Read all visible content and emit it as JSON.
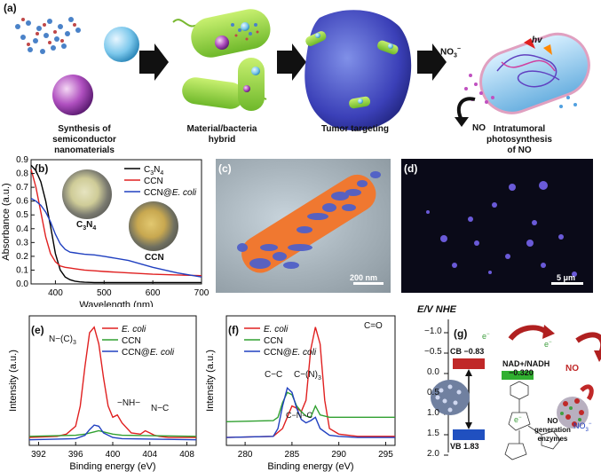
{
  "panel_a": {
    "label": "(a)",
    "captions": [
      {
        "lines": [
          "Synthesis of",
          "semiconductor",
          "nanomaterials"
        ]
      },
      {
        "lines": [
          "Material/bacteria",
          "hybrid"
        ]
      },
      {
        "lines": [
          "Tumor targeting"
        ]
      },
      {
        "lines": [
          "Intratumoral",
          "photosynthesis",
          "of NO"
        ]
      }
    ],
    "labels": {
      "no3": "NO",
      "no3_sup": "3",
      "no3_charge": "−",
      "no": "NO",
      "hv": "hv"
    }
  },
  "panel_b": {
    "label": "(b)",
    "photo_labels": {
      "c3n4": "C",
      "c3n4_sub1": "3",
      "c3n4_n": "N",
      "c3n4_sub2": "4",
      "ccn": "CCN"
    }
  },
  "panel_c": {
    "label": "(c)",
    "scalebar": "200 nm"
  },
  "panel_d": {
    "label": "(d)",
    "scalebar": "5 μm"
  },
  "panel_e": {
    "label": "(e)",
    "annotations": {
      "nc3": "N−(C)",
      "nc3_sub": "3",
      "nh": "−NH−",
      "nc": "N−C"
    }
  },
  "panel_f": {
    "label": "(f)",
    "annotations": {
      "co": "C=O",
      "cc": "C−C",
      "cn3": "C−(N)",
      "cn3_sub": "3",
      "cnc": "C−N−C"
    }
  },
  "panel_g": {
    "label": "(g)",
    "axis_title": "E/V NHE",
    "ticks": [
      "−1.0",
      "−0.5",
      "0.0",
      "0.5",
      "1.0",
      "1.5",
      "2.0"
    ],
    "cb": "CB −0.83",
    "vb": "VB 1.83",
    "nad": "NAD+/NADH",
    "nad_val": "−0.320",
    "electron": "e",
    "electron_sup": "−",
    "no": "NO",
    "no3": "NO",
    "no3_sub": "3",
    "no3_sup": "−",
    "enzymes": [
      "NO",
      "generation",
      "enzymes"
    ]
  },
  "chart_data": [
    {
      "panel": "b",
      "type": "line",
      "xlabel": "Wavelength (nm)",
      "ylabel": "Absorbance (a.u.)",
      "xlim": [
        350,
        700
      ],
      "ylim": [
        0.0,
        0.9
      ],
      "xticks": [
        "400",
        "500",
        "600",
        "700"
      ],
      "yticks": [
        "0.0",
        "0.1",
        "0.2",
        "0.3",
        "0.4",
        "0.5",
        "0.6",
        "0.7",
        "0.8",
        "0.9"
      ],
      "legend": "top-right",
      "series": [
        {
          "name": "C3N4",
          "color": "#000000",
          "x": [
            350,
            360,
            370,
            380,
            390,
            400,
            410,
            420,
            430,
            440,
            450,
            460,
            480,
            500,
            550,
            600,
            650,
            700
          ],
          "y": [
            0.86,
            0.82,
            0.74,
            0.6,
            0.42,
            0.22,
            0.1,
            0.05,
            0.03,
            0.02,
            0.015,
            0.012,
            0.01,
            0.01,
            0.01,
            0.01,
            0.01,
            0.01
          ]
        },
        {
          "name": "CCN",
          "color": "#e02020",
          "x": [
            350,
            360,
            370,
            380,
            390,
            400,
            410,
            420,
            430,
            440,
            450,
            460,
            480,
            500,
            550,
            600,
            650,
            700
          ],
          "y": [
            0.83,
            0.7,
            0.52,
            0.34,
            0.22,
            0.16,
            0.13,
            0.12,
            0.115,
            0.11,
            0.105,
            0.1,
            0.095,
            0.09,
            0.08,
            0.07,
            0.065,
            0.06
          ]
        },
        {
          "name": "CCN@E. coli",
          "color": "#2040c0",
          "x": [
            350,
            360,
            370,
            380,
            390,
            400,
            410,
            420,
            430,
            440,
            450,
            460,
            480,
            500,
            550,
            600,
            650,
            700
          ],
          "y": [
            0.62,
            0.6,
            0.57,
            0.52,
            0.45,
            0.36,
            0.29,
            0.25,
            0.23,
            0.225,
            0.22,
            0.215,
            0.21,
            0.2,
            0.17,
            0.12,
            0.08,
            0.05
          ]
        }
      ]
    },
    {
      "panel": "e",
      "type": "line",
      "xlabel": "Binding energy (eV)",
      "ylabel": "Intensity (a.u.)",
      "xlim": [
        391,
        409
      ],
      "xticks": [
        "392",
        "396",
        "400",
        "404",
        "408"
      ],
      "legend": "top-right",
      "series": [
        {
          "name": "E. coli",
          "color": "#e02020",
          "x": [
            391,
            394,
            395,
            396,
            396.5,
            397,
            397.5,
            398,
            398.5,
            399,
            399.5,
            400,
            400.5,
            401,
            402,
            403,
            403.5,
            404,
            404.5,
            405,
            406,
            409
          ],
          "y": [
            0.02,
            0.03,
            0.05,
            0.12,
            0.3,
            0.65,
            0.95,
            1.0,
            0.85,
            0.55,
            0.3,
            0.2,
            0.22,
            0.15,
            0.06,
            0.05,
            0.08,
            0.06,
            0.04,
            0.03,
            0.02,
            0.02
          ]
        },
        {
          "name": "CCN",
          "color": "#30a030",
          "x": [
            391,
            396,
            397,
            398,
            398.5,
            399,
            400,
            401,
            409
          ],
          "y": [
            0.03,
            0.04,
            0.05,
            0.07,
            0.08,
            0.07,
            0.05,
            0.04,
            0.03
          ]
        },
        {
          "name": "CCN@E. coli",
          "color": "#2040c0",
          "x": [
            391,
            396,
            397,
            397.5,
            398,
            398.5,
            399,
            400,
            401,
            409
          ],
          "y": [
            0.0,
            0.01,
            0.04,
            0.09,
            0.13,
            0.12,
            0.06,
            0.02,
            0.01,
            0.0
          ]
        }
      ]
    },
    {
      "panel": "f",
      "type": "line",
      "xlabel": "Binding energy (eV)",
      "ylabel": "Intensity (a.u.)",
      "xlim": [
        278,
        296
      ],
      "xticks": [
        "280",
        "285",
        "290",
        "295"
      ],
      "legend": "top-left",
      "series": [
        {
          "name": "E. coli",
          "color": "#e02020",
          "x": [
            278,
            283,
            284,
            284.5,
            285,
            285.5,
            286,
            286.5,
            287,
            287.5,
            288,
            288.5,
            289,
            290,
            292,
            296
          ],
          "y": [
            0.02,
            0.03,
            0.1,
            0.2,
            0.3,
            0.28,
            0.25,
            0.35,
            0.8,
            1.0,
            0.85,
            0.35,
            0.1,
            0.05,
            0.03,
            0.03
          ]
        },
        {
          "name": "CCN",
          "color": "#30a030",
          "x": [
            278,
            283,
            283.5,
            284,
            284.5,
            285,
            285.5,
            286,
            286.5,
            287,
            287.5,
            288,
            289,
            290,
            292,
            296
          ],
          "y": [
            0.16,
            0.17,
            0.2,
            0.33,
            0.42,
            0.4,
            0.3,
            0.25,
            0.21,
            0.2,
            0.3,
            0.22,
            0.2,
            0.2,
            0.2,
            0.2
          ]
        },
        {
          "name": "CCN@E. coli",
          "color": "#2040c0",
          "x": [
            278,
            283,
            283.5,
            284,
            284.5,
            285,
            285.5,
            286,
            286.5,
            287,
            287.5,
            288,
            289,
            290,
            292,
            296
          ],
          "y": [
            0.02,
            0.03,
            0.1,
            0.3,
            0.46,
            0.42,
            0.28,
            0.18,
            0.15,
            0.17,
            0.2,
            0.1,
            0.04,
            0.03,
            0.02,
            0.02
          ]
        }
      ]
    }
  ]
}
